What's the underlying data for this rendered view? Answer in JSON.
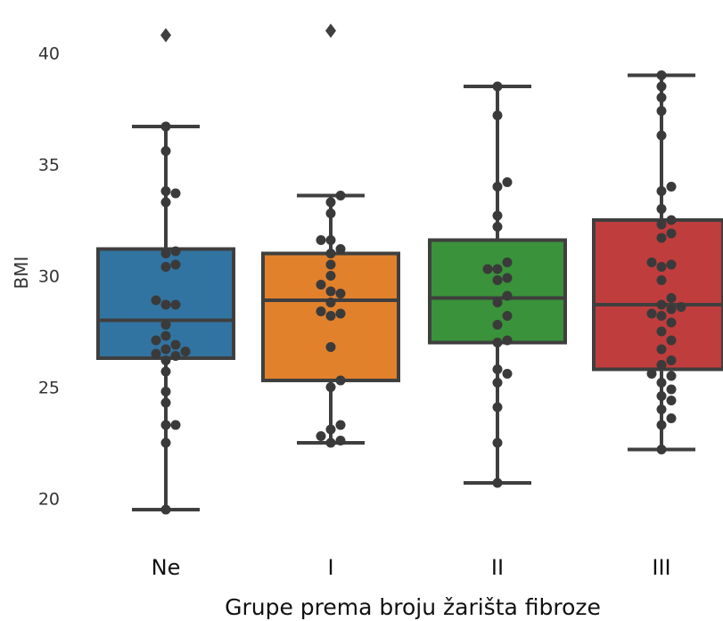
{
  "chart_data": {
    "type": "box",
    "categories": [
      "Ne",
      "I",
      "II",
      "III"
    ],
    "xlabel": "Grupe prema broju žarišta fibroze",
    "ylabel": "BMI",
    "ylim": [
      18.5,
      41.5
    ],
    "yticks": [
      20,
      25,
      30,
      35,
      40
    ],
    "grid": false,
    "boxes": [
      {
        "category": "Ne",
        "color": "#3274a1",
        "whisker_low": 19.5,
        "q1": 26.3,
        "median": 28.0,
        "q3": 31.2,
        "whisker_high": 36.7,
        "outliers": [
          40.8
        ],
        "points": [
          19.5,
          22.5,
          23.3,
          23.3,
          24.3,
          24.8,
          25.7,
          26.2,
          26.4,
          26.5,
          26.6,
          26.7,
          26.9,
          27.1,
          27.3,
          27.8,
          28.7,
          28.7,
          28.9,
          30.4,
          30.5,
          31.0,
          31.1,
          33.3,
          33.7,
          33.8,
          35.6,
          36.7
        ]
      },
      {
        "category": "I",
        "color": "#e1812c",
        "whisker_low": 22.5,
        "q1": 25.3,
        "median": 28.9,
        "q3": 31.0,
        "whisker_high": 33.6,
        "outliers": [
          41.0
        ],
        "points": [
          22.5,
          22.6,
          22.8,
          23.1,
          23.3,
          25.0,
          25.3,
          26.8,
          28.2,
          28.3,
          28.4,
          28.8,
          29.2,
          29.3,
          29.6,
          30.0,
          30.5,
          31.0,
          31.2,
          31.6,
          31.6,
          32.8,
          33.3,
          33.6
        ]
      },
      {
        "category": "II",
        "color": "#3a923a",
        "whisker_low": 20.7,
        "q1": 27.0,
        "median": 29.0,
        "q3": 31.6,
        "whisker_high": 38.5,
        "outliers": [],
        "points": [
          20.7,
          22.5,
          24.1,
          25.2,
          25.6,
          25.8,
          27.0,
          27.1,
          27.8,
          28.2,
          28.8,
          29.1,
          29.8,
          29.9,
          30.3,
          30.3,
          30.6,
          32.2,
          32.7,
          34.0,
          34.2,
          37.2,
          38.5
        ]
      },
      {
        "category": "III",
        "color": "#c03d3e",
        "whisker_low": 22.2,
        "q1": 25.8,
        "median": 28.7,
        "q3": 32.5,
        "whisker_high": 39.0,
        "outliers": [],
        "points": [
          22.2,
          23.3,
          23.6,
          24.0,
          24.4,
          24.6,
          24.9,
          25.2,
          25.5,
          25.6,
          26.0,
          26.2,
          26.7,
          27.1,
          27.5,
          27.9,
          28.2,
          28.3,
          28.5,
          28.6,
          28.7,
          29.0,
          29.8,
          30.4,
          30.5,
          30.6,
          31.7,
          31.9,
          32.3,
          32.5,
          33.0,
          33.8,
          34.0,
          36.3,
          37.4,
          38.0,
          38.5,
          39.0
        ]
      }
    ]
  }
}
